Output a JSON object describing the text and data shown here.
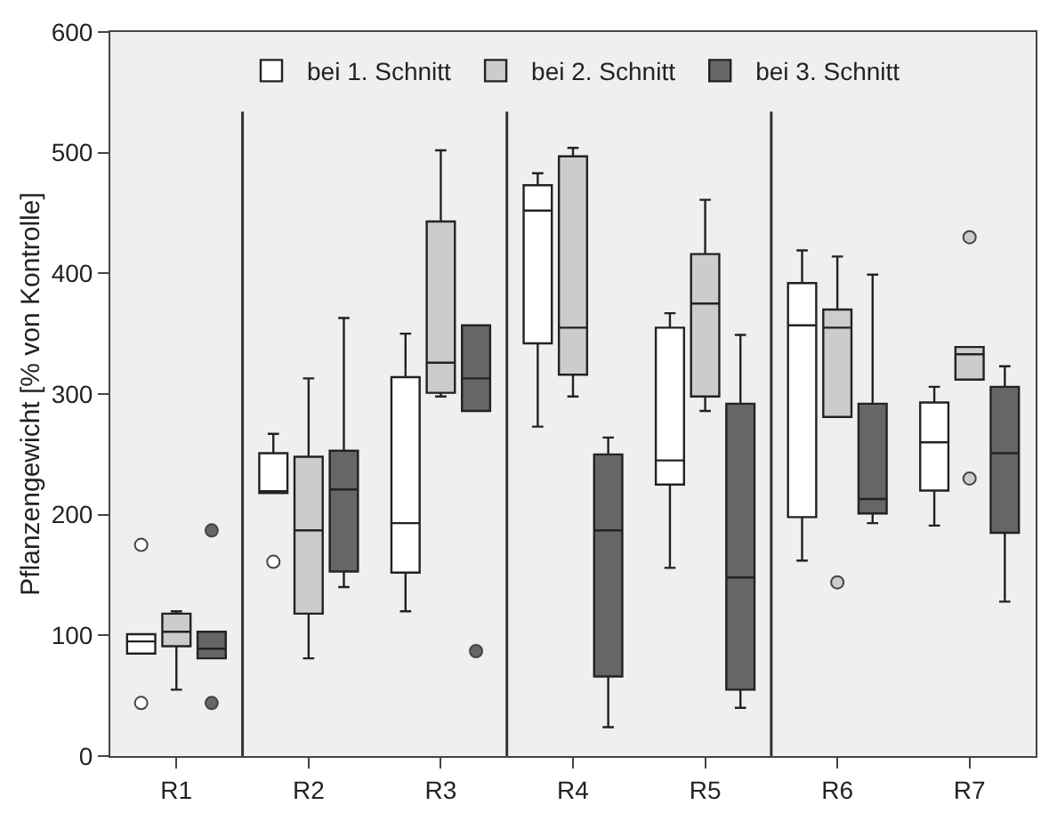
{
  "chart_data": {
    "type": "box",
    "ylabel": "Pflanzengewicht [% von Kontrolle]",
    "categories": [
      "R1",
      "R2",
      "R3",
      "R4",
      "R5",
      "R6",
      "R7"
    ],
    "ylim": [
      0,
      600
    ],
    "yticks": [
      0,
      100,
      200,
      300,
      400,
      500,
      600
    ],
    "grid": false,
    "legend": "top",
    "marker": "circle",
    "series": [
      {
        "name": "bei 1. Schnitt",
        "color": "#ffffff",
        "boxes": [
          {
            "low": 85,
            "q1": 85,
            "median": 95,
            "q3": 101,
            "high": 101,
            "outliers": [
              44,
              175
            ]
          },
          {
            "low": 218,
            "q1": 218,
            "median": 218,
            "q3": 251,
            "high": 267,
            "outliers": [
              161
            ]
          },
          {
            "low": 120,
            "q1": 152,
            "median": 193,
            "q3": 314,
            "high": 350
          },
          {
            "low": 273,
            "q1": 342,
            "median": 452,
            "q3": 473,
            "high": 483
          },
          {
            "low": 156,
            "q1": 225,
            "median": 245,
            "q3": 355,
            "high": 367
          },
          {
            "low": 162,
            "q1": 198,
            "median": 357,
            "q3": 392,
            "high": 419
          },
          {
            "low": 191,
            "q1": 220,
            "median": 260,
            "q3": 293,
            "high": 306
          }
        ]
      },
      {
        "name": "bei 2. Schnitt",
        "color": "#cccccc",
        "boxes": [
          {
            "low": 55,
            "q1": 91,
            "median": 103,
            "q3": 118,
            "high": 120
          },
          {
            "low": 81,
            "q1": 118,
            "median": 187,
            "q3": 248,
            "high": 313
          },
          {
            "low": 298,
            "q1": 301,
            "median": 326,
            "q3": 443,
            "high": 502
          },
          {
            "low": 298,
            "q1": 316,
            "median": 355,
            "q3": 497,
            "high": 504
          },
          {
            "low": 286,
            "q1": 298,
            "median": 375,
            "q3": 416,
            "high": 461
          },
          {
            "low": 281,
            "q1": 281,
            "median": 355,
            "q3": 370,
            "high": 414,
            "outliers": [
              144
            ]
          },
          {
            "low": 312,
            "q1": 312,
            "median": 333,
            "q3": 339,
            "high": 339,
            "outliers": [
              230,
              430
            ]
          }
        ]
      },
      {
        "name": "bei 3. Schnitt",
        "color": "#666666",
        "boxes": [
          {
            "low": 81,
            "q1": 81,
            "median": 89,
            "q3": 103,
            "high": 103,
            "outliers": [
              44,
              187
            ]
          },
          {
            "low": 140,
            "q1": 153,
            "median": 221,
            "q3": 253,
            "high": 363
          },
          {
            "low": 286,
            "q1": 286,
            "median": 313,
            "q3": 357,
            "high": 357,
            "outliers": [
              87
            ]
          },
          {
            "low": 24,
            "q1": 66,
            "median": 187,
            "q3": 250,
            "high": 264
          },
          {
            "low": 40,
            "q1": 55,
            "median": 148,
            "q3": 292,
            "high": 349
          },
          {
            "low": 193,
            "q1": 201,
            "median": 213,
            "q3": 292,
            "high": 399
          },
          {
            "low": 128,
            "q1": 185,
            "median": 251,
            "q3": 306,
            "high": 323
          }
        ]
      }
    ]
  }
}
